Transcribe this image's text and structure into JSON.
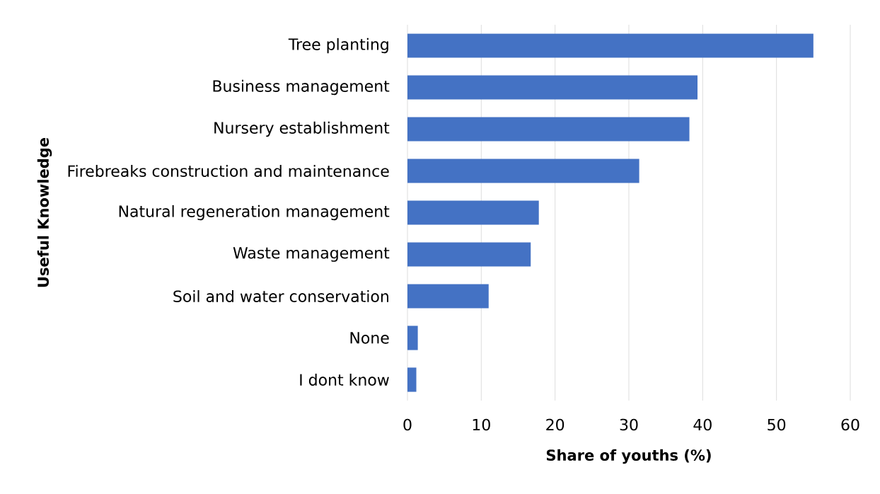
{
  "chart_data": {
    "type": "bar",
    "orientation": "horizontal",
    "xlabel": "Share of youths (%)",
    "ylabel": "Useful Knowledge",
    "categories": [
      "Tree planting",
      "Business management",
      "Nursery establishment",
      "Firebreaks construction and maintenance",
      "Natural regeneration management",
      "Waste management",
      "Soil and water conservation",
      "None",
      "I dont know"
    ],
    "values": [
      55,
      39.3,
      38.2,
      31.4,
      17.8,
      16.7,
      11,
      1.4,
      1.2
    ],
    "color": "#4472c4",
    "xlim": [
      0,
      60
    ],
    "xticks": [
      0,
      10,
      20,
      30,
      40,
      50,
      60
    ],
    "grid": "x"
  }
}
